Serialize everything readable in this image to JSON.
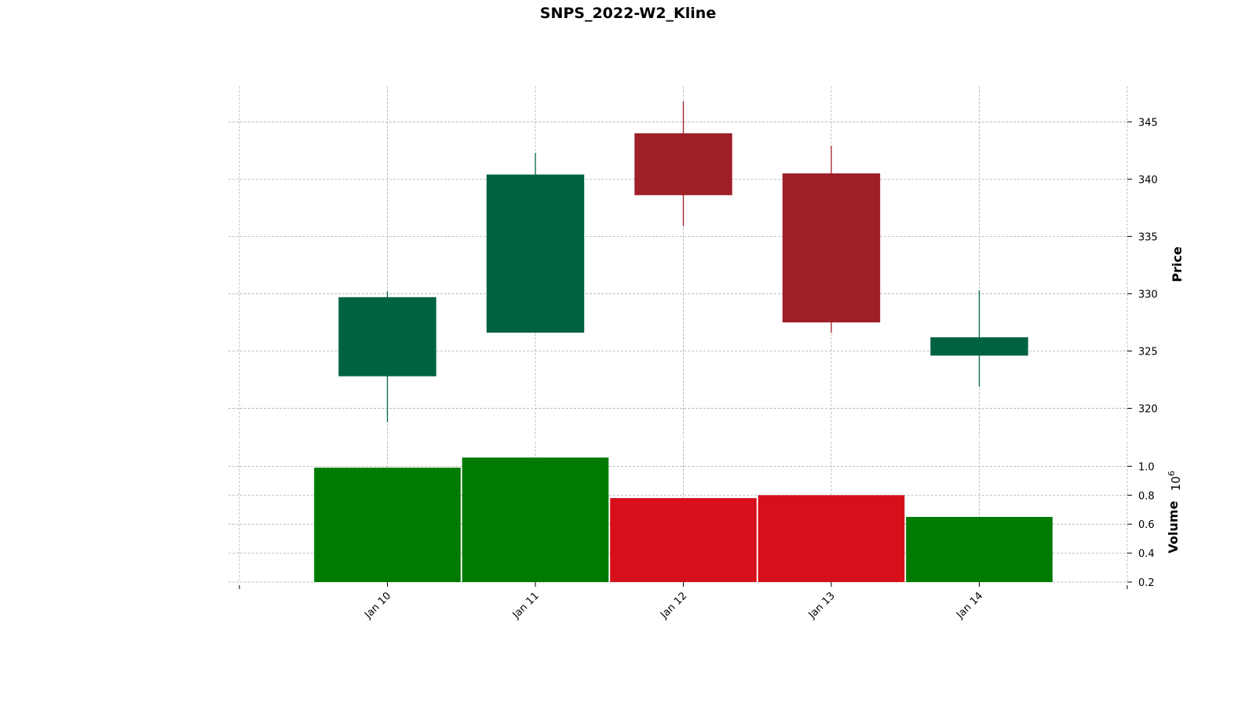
{
  "chart_data": {
    "type": "candlestick",
    "title": "SNPS_2022-W2_Kline",
    "categories": [
      "Jan 10",
      "Jan 11",
      "Jan 12",
      "Jan 13",
      "Jan 14"
    ],
    "ohlc": [
      {
        "date": "Jan 10",
        "open": 322.8,
        "high": 330.2,
        "low": 318.8,
        "close": 329.7
      },
      {
        "date": "Jan 11",
        "open": 326.6,
        "high": 342.3,
        "low": 326.6,
        "close": 340.4
      },
      {
        "date": "Jan 12",
        "open": 344.0,
        "high": 346.8,
        "low": 335.9,
        "close": 338.6
      },
      {
        "date": "Jan 13",
        "open": 340.5,
        "high": 342.9,
        "low": 326.6,
        "close": 327.5
      },
      {
        "date": "Jan 14",
        "open": 324.6,
        "high": 330.3,
        "low": 321.9,
        "close": 326.2
      }
    ],
    "volume": [
      0.99,
      1.06,
      0.78,
      0.8,
      0.65
    ],
    "price_axis": {
      "label": "Price",
      "ticks": [
        320,
        325,
        330,
        335,
        340,
        345
      ],
      "range": [
        317.3,
        348.1
      ]
    },
    "volume_axis": {
      "label": "Volume",
      "exponent_label": "10",
      "exponent": "6",
      "ticks": [
        "0.2",
        "0.4",
        "0.6",
        "0.8",
        "1.0"
      ],
      "range": [
        0.2,
        1.17
      ]
    },
    "colors": {
      "up": "#006340",
      "down": "#9e1f28",
      "volume_up": "#007a00",
      "volume_down": "#d60f1a"
    },
    "grid": true,
    "axis_side": "right"
  }
}
